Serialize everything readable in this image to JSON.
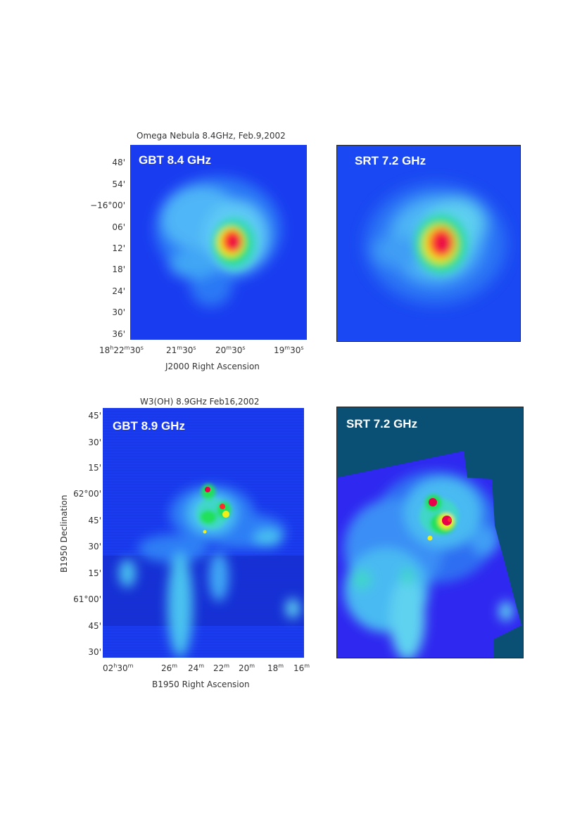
{
  "figure": {
    "panels": [
      {
        "id": "omega-gbt",
        "badge": "GBT 8.4 GHz",
        "title": "Omega Nebula   8.4GHz, Feb.9,2002",
        "xlabel": "J2000 Right Ascension",
        "y_ticks": [
          "48'",
          "54'",
          "−16°00'",
          "06'",
          "12'",
          "18'",
          "24'",
          "30'",
          "36'"
        ],
        "x_ticks": [
          {
            "h": "18",
            "hs": "h",
            "m": "22",
            "ms": "m",
            "s": "30",
            "ss": "s"
          },
          {
            "m": "21",
            "ms": "m",
            "s": "30",
            "ss": "s"
          },
          {
            "m": "20",
            "ms": "m",
            "s": "30",
            "ss": "s"
          },
          {
            "m": "19",
            "ms": "m",
            "s": "30",
            "ss": "s"
          }
        ]
      },
      {
        "id": "omega-srt",
        "badge": "SRT 7.2 GHz"
      },
      {
        "id": "w3oh-gbt",
        "badge": "GBT 8.9 GHz",
        "title": "W3(OH) 8.9GHz Feb16,2002",
        "xlabel": "B1950 Right Ascension",
        "ylabel": "B1950 Declination",
        "y_ticks": [
          "45'",
          "30'",
          "15'",
          "62°00'",
          "45'",
          "30'",
          "15'",
          "61°00'",
          "45'",
          "30'"
        ],
        "x_ticks": [
          {
            "h": "02",
            "hs": "h",
            "m": "30",
            "ms": "m"
          },
          {
            "m": "26",
            "ms": "m"
          },
          {
            "m": "24",
            "ms": "m"
          },
          {
            "m": "22",
            "ms": "m"
          },
          {
            "m": "20",
            "ms": "m"
          },
          {
            "m": "18",
            "ms": "m"
          },
          {
            "m": "16",
            "ms": "m"
          }
        ]
      },
      {
        "id": "w3oh-srt",
        "badge": "SRT 7.2 GHz"
      }
    ]
  },
  "colors": {
    "map_background": "#1a3cf0",
    "srt_outer": "#0a5075",
    "srt_field": "#2f28f0",
    "cyan": "#3fd6ff",
    "green": "#22e05a",
    "yellow": "#f2ee1a",
    "red": "#ff2a2a",
    "magenta": "#e8004a"
  }
}
